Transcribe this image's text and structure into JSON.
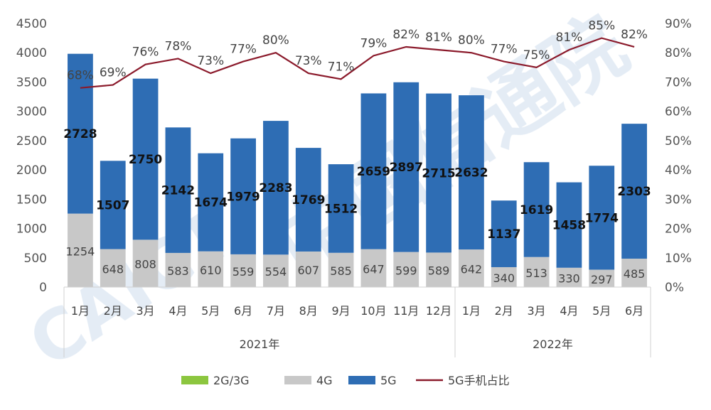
{
  "chart_data": {
    "type": "bar",
    "stacked": true,
    "categories": [
      "1月",
      "2月",
      "3月",
      "4月",
      "5月",
      "6月",
      "7月",
      "8月",
      "9月",
      "10月",
      "11月",
      "12月",
      "1月",
      "2月",
      "3月",
      "4月",
      "5月",
      "6月"
    ],
    "groups": [
      {
        "label": "2021年",
        "start": 0,
        "end": 11
      },
      {
        "label": "2022年",
        "start": 12,
        "end": 17
      }
    ],
    "series": [
      {
        "name": "2G/3G",
        "color": "#8cc63f",
        "values": [
          0,
          0,
          0,
          0,
          0,
          0,
          0,
          0,
          0,
          0,
          0,
          0,
          0,
          0,
          0,
          0,
          0,
          0
        ]
      },
      {
        "name": "4G",
        "color": "#c8c8c8",
        "values": [
          1254,
          648,
          808,
          583,
          610,
          559,
          554,
          607,
          585,
          647,
          599,
          589,
          642,
          340,
          513,
          330,
          297,
          485
        ]
      },
      {
        "name": "5G",
        "color": "#2e6db4",
        "values": [
          2728,
          1507,
          2750,
          2142,
          1674,
          1979,
          2283,
          1769,
          1512,
          2659,
          2897,
          2715,
          2632,
          1137,
          1619,
          1458,
          1774,
          2303
        ]
      }
    ],
    "line_series": {
      "name": "5G手机占比",
      "color": "#8b1a2b",
      "axis": "right",
      "values": [
        68,
        69,
        76,
        78,
        73,
        77,
        80,
        73,
        71,
        79,
        82,
        81,
        80,
        77,
        75,
        81,
        85,
        82
      ]
    },
    "line_labels": [
      "68%",
      "69%",
      "76%",
      "78%",
      "73%",
      "77%",
      "80%",
      "73%",
      "71%",
      "79%",
      "82%",
      "81%",
      "80%",
      "77%",
      "75%",
      "81%",
      "85%",
      "82%"
    ],
    "y_left": {
      "min": 0,
      "max": 4500,
      "ticks": [
        "0",
        "500",
        "1000",
        "1500",
        "2000",
        "2500",
        "3000",
        "3500",
        "4000",
        "4500"
      ]
    },
    "y_right": {
      "min": 0,
      "max": 90,
      "ticks": [
        "0%",
        "10%",
        "20%",
        "30%",
        "40%",
        "50%",
        "60%",
        "70%",
        "80%",
        "90%"
      ]
    },
    "grid": false,
    "legend_position": "bottom",
    "legend": [
      {
        "name": "2G/3G",
        "color": "#8cc63f",
        "kind": "bar"
      },
      {
        "name": "4G",
        "color": "#c8c8c8",
        "kind": "bar"
      },
      {
        "name": "5G",
        "color": "#2e6db4",
        "kind": "bar"
      },
      {
        "name": "5G手机占比",
        "color": "#8b1a2b",
        "kind": "line"
      }
    ]
  },
  "watermark": {
    "latin": "CAICT",
    "chinese": "中国信通院"
  }
}
